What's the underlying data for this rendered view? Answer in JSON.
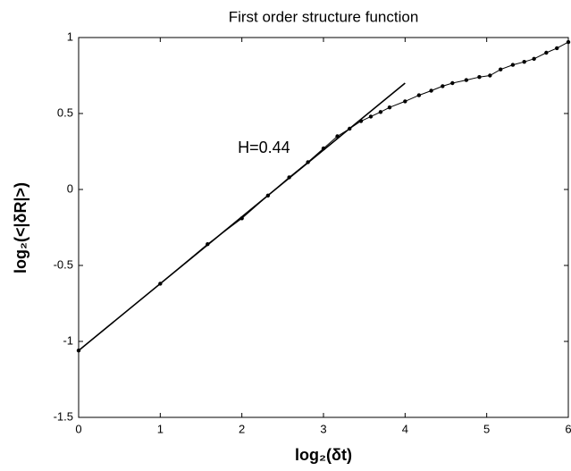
{
  "chart_data": {
    "type": "line",
    "title": "First order structure function",
    "xlabel": "log₂(δt)",
    "ylabel": "log₂(<|δR|>)",
    "annotation": "H=0.44",
    "xlim": [
      0,
      6
    ],
    "xticks": [
      0,
      1,
      2,
      3,
      4,
      5,
      6
    ],
    "ylim": [
      -1.5,
      1
    ],
    "yticks": [
      -1.5,
      -1,
      -0.5,
      0,
      0.5,
      1
    ],
    "series": [
      {
        "color": "#000000",
        "markers": true,
        "x": [
          0,
          1,
          1.58,
          2,
          2.32,
          2.58,
          2.81,
          3,
          3.17,
          3.32,
          3.46,
          3.58,
          3.7,
          3.81,
          4,
          4.17,
          4.32,
          4.46,
          4.58,
          4.75,
          4.91,
          5.04,
          5.17,
          5.32,
          5.46,
          5.58,
          5.73,
          5.86,
          6
        ],
        "values": [
          -1.06,
          -0.62,
          -0.36,
          -0.19,
          -0.04,
          0.08,
          0.18,
          0.27,
          0.35,
          0.4,
          0.45,
          0.48,
          0.51,
          0.54,
          0.58,
          0.62,
          0.65,
          0.68,
          0.7,
          0.72,
          0.74,
          0.75,
          0.79,
          0.82,
          0.84,
          0.86,
          0.9,
          0.93,
          0.97
        ]
      },
      {
        "color": "#000000",
        "markers": false,
        "x": [
          0,
          4
        ],
        "values": [
          -1.06,
          0.7
        ]
      }
    ]
  }
}
